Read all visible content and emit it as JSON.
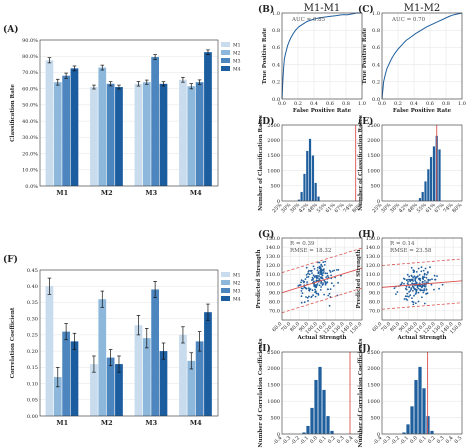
{
  "colors": {
    "M1": "#c9dcee",
    "M2": "#8db8dc",
    "M3": "#4d86bf",
    "M4": "#1c5da0",
    "hist": "#1f5f9e",
    "refline": "#d9534f",
    "roc": "#1f5f9e",
    "scatter": "#1f5f9e"
  },
  "chart_data": [
    {
      "panel": "(A)",
      "type": "bar",
      "ylabel": "Classification Rate",
      "categories": [
        "M1",
        "M2",
        "M3",
        "M4"
      ],
      "ylim": [
        0,
        90
      ],
      "yticks": [
        "0.0%",
        "10.0%",
        "20.0%",
        "30.0%",
        "40.0%",
        "50.0%",
        "60.0%",
        "70.0%",
        "80.0%",
        "90.0%"
      ],
      "legend": [
        "M1",
        "M2",
        "M3",
        "M4"
      ],
      "legend_position": "top-right",
      "series": [
        {
          "name": "M1",
          "values": [
            77.5,
            61,
            63,
            65.5
          ]
        },
        {
          "name": "M2",
          "values": [
            64,
            73,
            64,
            61.5
          ]
        },
        {
          "name": "M3",
          "values": [
            68,
            63,
            79.5,
            64
          ]
        },
        {
          "name": "M4",
          "values": [
            72.5,
            61,
            63,
            82.5
          ]
        }
      ],
      "errors": [
        [
          1.6,
          1.2,
          1.4,
          1.5
        ],
        [
          1.8,
          1.5,
          1.3,
          1.6
        ],
        [
          1.6,
          1.3,
          1.5,
          1.4
        ],
        [
          1.5,
          1.2,
          1.3,
          1.4
        ]
      ]
    },
    {
      "panel": "(B)",
      "type": "line",
      "title": "M1-M1",
      "xlabel": "False Positive Rate",
      "ylabel": "True Positive Rate",
      "annotation": "AUC = 0.85",
      "xlim": [
        0,
        1
      ],
      "ylim": [
        0,
        1
      ],
      "xticks": [
        "0.0",
        "0.2",
        "0.4",
        "0.6",
        "0.8",
        "1.0"
      ],
      "yticks": [
        "0.0",
        "0.2",
        "0.4",
        "0.6",
        "0.8",
        "1.0"
      ],
      "x": [
        0,
        0.01,
        0.02,
        0.03,
        0.05,
        0.07,
        0.09,
        0.11,
        0.14,
        0.17,
        0.21,
        0.26,
        0.31,
        0.37,
        0.44,
        0.52,
        0.6,
        0.68,
        0.75,
        0.82,
        0.88,
        0.93,
        0.97,
        1.0
      ],
      "y": [
        0,
        0.2,
        0.36,
        0.47,
        0.55,
        0.62,
        0.67,
        0.71,
        0.76,
        0.8,
        0.84,
        0.87,
        0.9,
        0.92,
        0.94,
        0.95,
        0.96,
        0.97,
        0.98,
        0.98,
        0.99,
        1.0,
        1.0,
        1.0
      ]
    },
    {
      "panel": "(C)",
      "type": "line",
      "title": "M1-M2",
      "xlabel": "False Positive Rate",
      "ylabel": "True Positive Rate",
      "annotation": "AUC = 0.70",
      "xlim": [
        0,
        1
      ],
      "ylim": [
        0,
        1
      ],
      "xticks": [
        "0.0",
        "0.2",
        "0.4",
        "0.6",
        "0.8",
        "1.0"
      ],
      "yticks": [
        "0.0",
        "0.2",
        "0.4",
        "0.6",
        "0.8",
        "1.0"
      ],
      "x": [
        0,
        0.01,
        0.02,
        0.04,
        0.06,
        0.09,
        0.12,
        0.16,
        0.2,
        0.25,
        0.3,
        0.36,
        0.42,
        0.49,
        0.56,
        0.63,
        0.7,
        0.77,
        0.84,
        0.9,
        0.95,
        1.0
      ],
      "y": [
        0,
        0.1,
        0.2,
        0.28,
        0.35,
        0.41,
        0.47,
        0.53,
        0.58,
        0.63,
        0.68,
        0.72,
        0.76,
        0.8,
        0.84,
        0.87,
        0.9,
        0.93,
        0.96,
        0.98,
        0.99,
        1.0
      ]
    },
    {
      "panel": "(D)",
      "type": "bar",
      "ylabel": "Number of Classification Rates",
      "ylim": [
        0,
        2500
      ],
      "yticks": [
        "0",
        "500",
        "1000",
        "1500",
        "2000",
        "2500"
      ],
      "xticks": [
        "25%",
        "30%",
        "36%",
        "42%",
        "48%",
        "55%",
        "61%",
        "67%",
        "74%",
        "80%"
      ],
      "xlim": [
        25,
        82
      ],
      "x": [
        37,
        39,
        41,
        43,
        45,
        47,
        49,
        51
      ],
      "values": [
        50,
        300,
        900,
        1650,
        2050,
        1500,
        600,
        150
      ],
      "reference_line": 77.5
    },
    {
      "panel": "(E)",
      "type": "bar",
      "ylabel": "Number of Classification Rates",
      "ylim": [
        0,
        2500
      ],
      "yticks": [
        "0",
        "500",
        "1000",
        "1500",
        "2000",
        "2500"
      ],
      "xticks": [
        "25%",
        "30%",
        "36%",
        "42%",
        "48%",
        "55%",
        "61%",
        "67%",
        "74%",
        "80%"
      ],
      "xlim": [
        25,
        82
      ],
      "x": [
        52,
        54,
        56,
        58,
        60,
        62,
        64,
        66
      ],
      "values": [
        100,
        300,
        650,
        1050,
        1450,
        1800,
        2150,
        1700
      ],
      "reference_line": 64
    },
    {
      "panel": "(F)",
      "type": "bar",
      "ylabel": "Correlation Coefficient",
      "categories": [
        "M1",
        "M2",
        "M3",
        "M4"
      ],
      "ylim": [
        0,
        0.45
      ],
      "yticks": [
        "0.00",
        "0.05",
        "0.10",
        "0.15",
        "0.20",
        "0.25",
        "0.30",
        "0.35",
        "0.40",
        "0.45"
      ],
      "legend": [
        "M1",
        "M2",
        "M3",
        "M4"
      ],
      "legend_position": "top-right",
      "series": [
        {
          "name": "M1",
          "values": [
            0.4,
            0.16,
            0.28,
            0.25
          ]
        },
        {
          "name": "M2",
          "values": [
            0.12,
            0.36,
            0.24,
            0.17
          ]
        },
        {
          "name": "M3",
          "values": [
            0.26,
            0.18,
            0.39,
            0.23
          ]
        },
        {
          "name": "M4",
          "values": [
            0.23,
            0.16,
            0.2,
            0.32
          ]
        }
      ],
      "errors": [
        [
          0.025,
          0.025,
          0.03,
          0.025
        ],
        [
          0.03,
          0.025,
          0.03,
          0.025
        ],
        [
          0.025,
          0.025,
          0.025,
          0.03
        ],
        [
          0.025,
          0.025,
          0.025,
          0.025
        ]
      ]
    },
    {
      "panel": "(G)",
      "type": "scatter",
      "xlabel": "Actual Strength",
      "ylabel": "Predicted Strength",
      "annotation": [
        "R = 0.39",
        "RMSE = 18.32"
      ],
      "xlim": [
        60,
        150
      ],
      "ylim": [
        60,
        150
      ],
      "xticks": [
        "60.0",
        "70.0",
        "80.0",
        "90.0",
        "100.0",
        "110.0",
        "120.0",
        "130.0",
        "140.0",
        "150.0"
      ],
      "yticks": [
        "70.0",
        "80.0",
        "90.0",
        "100.0",
        "110.0",
        "120.0",
        "130.0",
        "140.0",
        "150.0"
      ],
      "fit": {
        "slope": 0.3,
        "intercept": 72
      },
      "band": 22,
      "n_points": 180,
      "point_spread": 12
    },
    {
      "panel": "(H)",
      "type": "scatter",
      "xlabel": "Actual Strength",
      "ylabel": "Predicted Strength",
      "annotation": [
        "R = 0.14",
        "RMSE = 23.58"
      ],
      "xlim": [
        60,
        150
      ],
      "ylim": [
        60,
        150
      ],
      "xticks": [
        "60.0",
        "70.0",
        "80.0",
        "90.0",
        "100.0",
        "110.0",
        "120.0",
        "130.0",
        "140.0",
        "150.0"
      ],
      "yticks": [
        "70.0",
        "80.0",
        "90.0",
        "100.0",
        "110.0",
        "120.0",
        "130.0",
        "140.0",
        "150.0"
      ],
      "fit": {
        "slope": 0.08,
        "intercept": 91
      },
      "band": 24,
      "n_points": 180,
      "point_spread": 12
    },
    {
      "panel": "(I)",
      "type": "bar",
      "ylabel": "Number of Correlation Coefficients",
      "ylim": [
        0,
        2500
      ],
      "yticks": [
        "0",
        "500",
        "1000",
        "1500",
        "2000",
        "2500"
      ],
      "xticks": [
        "-0.4",
        "-0.3",
        "-0.2",
        "-0.1",
        "0.0",
        "0.1",
        "0.2",
        "0.3",
        "0.4",
        "0.5"
      ],
      "xlim": [
        -0.45,
        0.55
      ],
      "x": [
        -0.175,
        -0.125,
        -0.075,
        -0.025,
        0.025,
        0.075,
        0.125,
        0.175
      ],
      "values": [
        50,
        250,
        800,
        1650,
        2050,
        1350,
        550,
        100
      ],
      "reference_line": 0.4
    },
    {
      "panel": "(J)",
      "type": "bar",
      "ylabel": "Number of Correlation Coefficients",
      "ylim": [
        0,
        2500
      ],
      "yticks": [
        "0",
        "500",
        "1000",
        "1500",
        "2000",
        "2500"
      ],
      "xticks": [
        "-0.4",
        "-0.3",
        "-0.2",
        "-0.1",
        "0.0",
        "0.1",
        "0.2",
        "0.3",
        "0.4",
        "0.5"
      ],
      "xlim": [
        -0.45,
        0.55
      ],
      "x": [
        -0.175,
        -0.125,
        -0.075,
        -0.025,
        0.025,
        0.075,
        0.125,
        0.175
      ],
      "values": [
        50,
        300,
        850,
        1650,
        2050,
        1400,
        550,
        100
      ],
      "reference_line": 0.12
    }
  ]
}
